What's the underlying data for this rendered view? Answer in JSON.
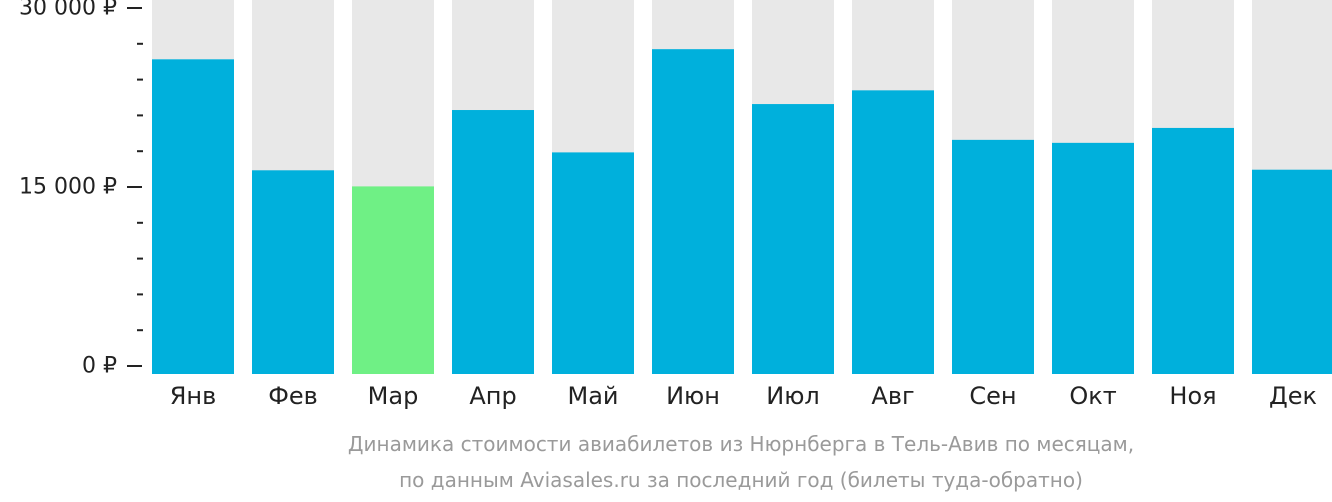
{
  "chart_data": {
    "type": "bar",
    "categories": [
      "Янв",
      "Фев",
      "Мар",
      "Апр",
      "Май",
      "Июн",
      "Июл",
      "Авг",
      "Сен",
      "Окт",
      "Ноя",
      "Дек"
    ],
    "values": [
      25700,
      16400,
      15050,
      21450,
      17900,
      26550,
      21950,
      23100,
      18950,
      18700,
      19950,
      16450
    ],
    "ylim": [
      0,
      30000
    ],
    "yticks": [
      {
        "value": 0,
        "label": "0 ₽"
      },
      {
        "value": 15000,
        "label": "15 000 ₽"
      },
      {
        "value": 30000,
        "label": "30 000 ₽"
      }
    ],
    "minor_tick_step": 3000,
    "highlight_index": 2,
    "colors": {
      "bar": "#00b0dc",
      "highlight": "#6ff085",
      "background_bar": "#e8e8e8",
      "axis": "#222222"
    },
    "grid": false,
    "legend": "none",
    "caption": [
      "Динамика стоимости авиабилетов из Нюрнберга в Тель-Авив по месяцам,",
      "по данным Aviasales.ru за последний год (билеты туда-обратно)"
    ]
  }
}
